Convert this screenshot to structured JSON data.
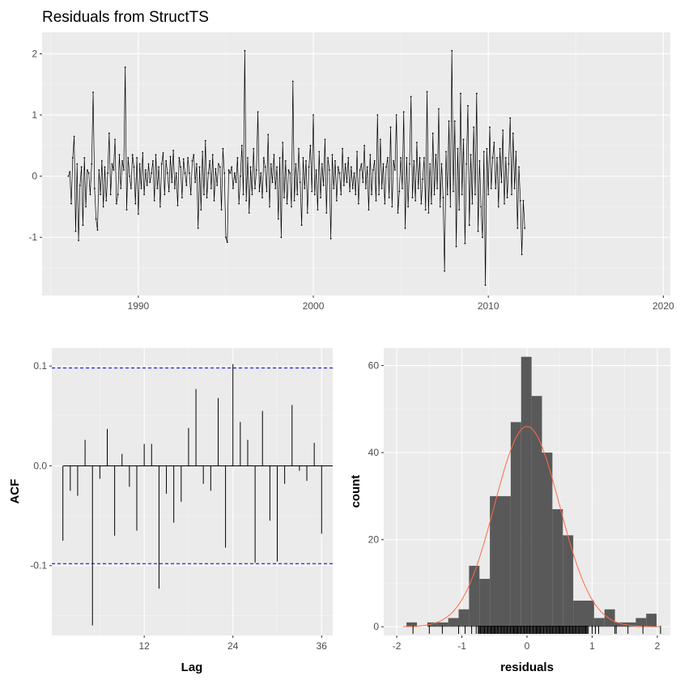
{
  "chart_data": [
    {
      "type": "line",
      "title": "Residuals from StructTS",
      "xlabel": "",
      "ylabel": "",
      "xlim": [
        1984.5,
        2020.4
      ],
      "ylim": [
        -1.95,
        2.35
      ],
      "x_ticks": [
        "1990",
        "2000",
        "2010",
        "2020"
      ],
      "y_ticks": [
        "-1",
        "0",
        "1",
        "2"
      ],
      "grid": true,
      "series": [
        {
          "x_start": 1986.0,
          "step": 0.0833333,
          "values": [
            0.0,
            0.07,
            -0.45,
            0.3,
            0.65,
            -0.9,
            0.2,
            -1.05,
            -0.15,
            0.15,
            -0.8,
            0.3,
            -0.5,
            0.1,
            0.05,
            -0.3,
            0.2,
            1.37,
            -0.2,
            -0.7,
            -0.88,
            0.1,
            -0.3,
            0.25,
            -0.5,
            0.15,
            -0.4,
            0.05,
            0.7,
            -0.3,
            0.2,
            0.1,
            0.6,
            -0.45,
            -0.3,
            0.35,
            -0.2,
            0.25,
            0.1,
            1.78,
            -0.55,
            0.3,
            0.0,
            -0.2,
            0.35,
            0.15,
            -0.45,
            0.3,
            -0.62,
            0.2,
            -0.2,
            0.38,
            -0.3,
            0.1,
            -0.15,
            0.2,
            -0.1,
            0.05,
            0.25,
            -0.4,
            0.35,
            -0.2,
            0.15,
            -0.5,
            0.2,
            0.38,
            -0.3,
            0.25,
            0.05,
            -0.25,
            0.32,
            -0.1,
            0.42,
            -0.2,
            0.05,
            -0.48,
            0.3,
            0.15,
            -0.35,
            0.28,
            0.05,
            -0.15,
            0.3,
            0.05,
            -0.3,
            0.25,
            0.35,
            -0.1,
            0.2,
            -0.85,
            0.15,
            -0.55,
            0.4,
            -0.3,
            0.58,
            -0.35,
            0.05,
            0.25,
            -0.2,
            0.35,
            -0.4,
            0.12,
            -0.15,
            0.2,
            0.15,
            -0.55,
            0.45,
            0.05,
            -1.0,
            -1.08,
            0.1,
            0.05,
            0.15,
            -0.2,
            0.05,
            -0.1,
            0.3,
            -0.45,
            0.0,
            0.5,
            -0.3,
            2.05,
            -0.4,
            0.3,
            -0.6,
            0.15,
            -0.3,
            0.45,
            -0.2,
            0.1,
            1.05,
            -0.25,
            0.05,
            -0.35,
            0.3,
            0.15,
            -0.25,
            0.68,
            -0.5,
            0.2,
            -0.1,
            0.35,
            -0.2,
            0.15,
            -0.7,
            0.3,
            -1.0,
            0.55,
            -0.35,
            0.25,
            -0.45,
            0.1,
            0.05,
            -0.5,
            1.55,
            -0.4,
            0.2,
            -0.3,
            0.45,
            -0.1,
            -0.8,
            0.3,
            -0.2,
            0.25,
            -0.6,
            0.15,
            0.5,
            -0.25,
            1.0,
            -0.3,
            0.1,
            -0.55,
            0.4,
            -0.35,
            0.2,
            -0.15,
            0.6,
            -0.6,
            0.3,
            0.1,
            -1.02,
            0.35,
            -0.2,
            0.25,
            -0.4,
            0.15,
            0.05,
            -0.3,
            0.45,
            -0.15,
            0.2,
            -0.1,
            0.3,
            -0.25,
            0.15,
            -0.2,
            0.05,
            -0.3,
            0.4,
            -0.45,
            0.1,
            0.2,
            -0.1,
            0.5,
            -0.2,
            0.15,
            -0.55,
            0.35,
            -0.3,
            0.1,
            0.25,
            -0.4,
            1.0,
            -0.3,
            0.6,
            -0.2,
            0.2,
            -0.45,
            0.15,
            0.3,
            -0.35,
            0.8,
            -0.5,
            0.25,
            0.1,
            1.0,
            -0.6,
            -0.25,
            0.3,
            -0.2,
            1.05,
            -0.85,
            0.3,
            -0.5,
            0.2,
            1.3,
            -0.35,
            0.25,
            -0.4,
            0.55,
            -0.2,
            0.3,
            -0.45,
            -0.05,
            0.3,
            -0.55,
            1.38,
            -0.6,
            0.2,
            -0.45,
            0.7,
            -0.3,
            0.35,
            -0.2,
            1.1,
            -0.5,
            0.2,
            -0.35,
            -1.55,
            0.4,
            -0.3,
            0.9,
            -0.5,
            2.05,
            -0.25,
            0.9,
            -1.15,
            0.45,
            -0.55,
            1.35,
            -0.3,
            0.6,
            -1.1,
            0.2,
            1.15,
            -0.8,
            0.35,
            -0.45,
            0.8,
            -0.3,
            1.35,
            -0.9,
            0.25,
            -0.5,
            -1.0,
            0.4,
            -1.78,
            0.45,
            -0.3,
            0.8,
            -0.2,
            0.3,
            0.55,
            -0.2,
            0.3,
            -0.5,
            0.45,
            -0.1,
            0.75,
            -0.45,
            0.3,
            -0.35,
            0.2,
            0.95,
            -0.3,
            0.7,
            -0.2,
            0.4,
            -0.85,
            0.15,
            -0.4,
            -1.28,
            -0.4,
            -0.85
          ]
        }
      ]
    },
    {
      "type": "bar",
      "title": "",
      "xlabel": "Lag",
      "ylabel": "ACF",
      "xlim": [
        -0.5,
        37.5
      ],
      "ylim": [
        -0.17,
        0.118
      ],
      "x_ticks": [
        "12",
        "24",
        "36"
      ],
      "y_ticks": [
        "-0.1",
        "0.0",
        "0.1"
      ],
      "lags": [
        1,
        2,
        3,
        4,
        5,
        6,
        7,
        8,
        9,
        10,
        11,
        12,
        13,
        14,
        15,
        16,
        17,
        18,
        19,
        20,
        21,
        22,
        23,
        24,
        25,
        26,
        27,
        28,
        29,
        30,
        31,
        32,
        33,
        34,
        35,
        36
      ],
      "values": [
        -0.075,
        -0.025,
        -0.03,
        0.026,
        -0.16,
        -0.013,
        0.037,
        -0.07,
        0.012,
        -0.021,
        -0.065,
        0.022,
        0.022,
        -0.123,
        -0.028,
        -0.057,
        -0.036,
        0.038,
        0.077,
        -0.018,
        -0.025,
        0.068,
        -0.082,
        0.102,
        0.044,
        0.026,
        -0.097,
        0.055,
        -0.055,
        -0.096,
        -0.018,
        0.061,
        -0.005,
        -0.015,
        0.023,
        -0.068
      ],
      "ci": 0.098,
      "ci_color": "#0000cc",
      "grid": true
    },
    {
      "type": "bar",
      "title": "",
      "xlabel": "residuals",
      "ylabel": "count",
      "xlim": [
        -2.2,
        2.2
      ],
      "ylim": [
        -2,
        64
      ],
      "x_ticks": [
        "-2",
        "-1",
        "0",
        "1",
        "2"
      ],
      "y_ticks": [
        "0",
        "20",
        "40",
        "60"
      ],
      "bin_starts": [
        -1.85,
        -1.69,
        -1.53,
        -1.37,
        -1.21,
        -1.05,
        -0.89,
        -0.73,
        -0.57,
        -0.41,
        -0.25,
        -0.09,
        0.07,
        0.23,
        0.39,
        0.55,
        0.71,
        0.87,
        1.03,
        1.19,
        1.35,
        1.51,
        1.67,
        1.83,
        1.99
      ],
      "bin_width": 0.16,
      "counts": [
        1,
        0,
        1,
        1,
        2,
        4,
        14,
        11,
        30,
        30,
        47,
        62,
        53,
        40,
        27,
        21,
        6,
        6,
        2,
        4,
        1,
        1,
        2,
        3,
        0
      ],
      "normal_curve": {
        "mean": 0.0,
        "sd": 0.5,
        "peak": 46,
        "color": "#ff6a45"
      },
      "rug": [
        -1.75,
        -1.5,
        -1.3,
        -1.05,
        -0.95,
        -0.85,
        -0.78,
        -0.72,
        -0.65,
        -0.6,
        -0.55,
        -0.5,
        -0.45,
        -0.4,
        -0.35,
        -0.3,
        -0.25,
        -0.2,
        -0.15,
        -0.1,
        -0.05,
        0.0,
        0.05,
        0.1,
        0.15,
        0.2,
        0.25,
        0.3,
        0.35,
        0.4,
        0.45,
        0.5,
        0.55,
        0.6,
        0.65,
        0.7,
        0.75,
        0.8,
        0.9,
        1.0,
        1.05,
        1.1,
        1.35,
        1.37,
        1.55,
        1.78,
        2.05
      ],
      "grid": true
    }
  ]
}
